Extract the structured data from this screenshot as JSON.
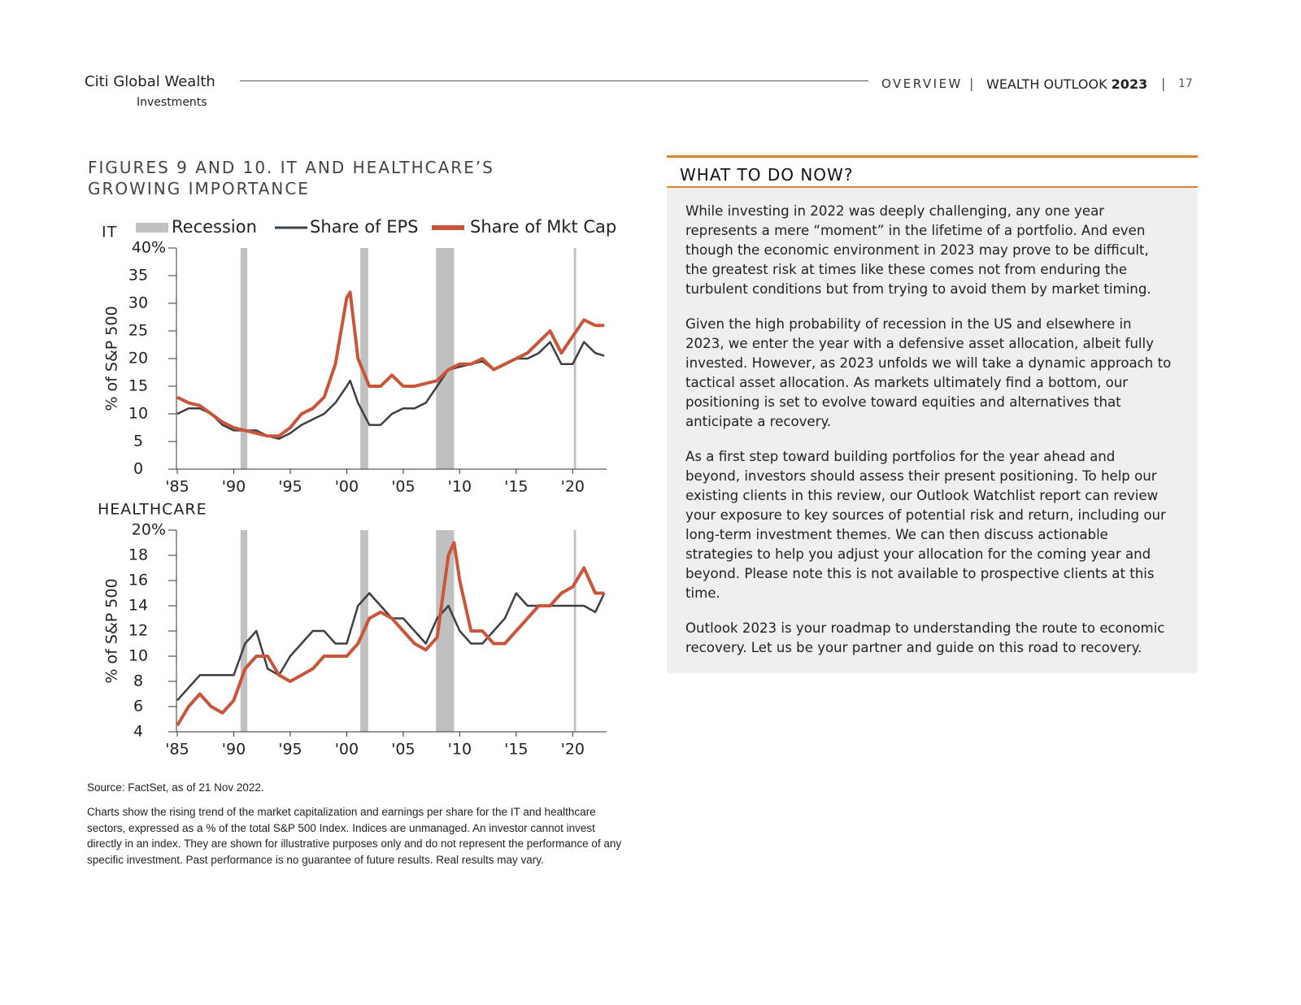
{
  "header": {
    "brand": "Citi Global Wealth",
    "brand_sub": "Investments",
    "section": "OVERVIEW",
    "publication": "WEALTH OUTLOOK",
    "year": "2023",
    "page": "17"
  },
  "figure": {
    "title_lines": [
      "FIGURES 9 AND 10. IT AND HEALTHCARE’S",
      "GROWING IMPORTANCE"
    ],
    "source": "Source: FactSet, as of 21 Nov 2022.",
    "note": "Charts show the rising trend of the market capitalization and earnings per share for the IT and healthcare sectors, expressed as a % of the total S&P 500 Index. Indices are unmanaged. An investor cannot invest directly in an index. They are shown for illustrative purposes only and do not represent the performance of any specific investment. Past performance is no guarantee of future results. Real results may vary."
  },
  "chart_data": [
    {
      "type": "line",
      "title": "IT",
      "ylabel": "% of S&P 500",
      "x": [
        1985,
        1986,
        1987,
        1988,
        1989,
        1990,
        1991,
        1992,
        1993,
        1994,
        1995,
        1996,
        1997,
        1998,
        1999,
        2000,
        2000.3,
        2001,
        2002,
        2003,
        2004,
        2005,
        2006,
        2007,
        2008,
        2009,
        2010,
        2011,
        2012,
        2013,
        2014,
        2015,
        2016,
        2017,
        2018,
        2019,
        2020,
        2021,
        2022,
        2022.8
      ],
      "recessions": {
        "name": "Recession",
        "color": "#c0c0c0",
        "periods": [
          [
            1990.6,
            1991.2
          ],
          [
            2001.2,
            2001.9
          ],
          [
            2007.9,
            2009.5
          ],
          [
            2020.1,
            2020.3
          ]
        ]
      },
      "series": [
        {
          "name": "Share of EPS",
          "color": "#3b4047",
          "values": [
            10,
            11,
            11,
            10,
            8,
            7,
            7,
            7,
            6,
            5.5,
            6.5,
            8,
            9,
            10,
            12,
            15,
            16,
            12,
            8,
            8,
            10,
            11,
            11,
            12,
            15,
            18,
            18.5,
            19,
            19.5,
            18,
            19,
            20,
            20,
            21,
            23,
            19,
            19,
            23,
            21,
            20.5
          ]
        },
        {
          "name": "Share of Mkt Cap",
          "color": "#c9553a",
          "values": [
            13,
            12,
            11.5,
            10,
            8.5,
            7.5,
            7,
            6.5,
            6,
            6,
            7.5,
            10,
            11,
            13,
            19,
            31,
            32,
            20,
            15,
            15,
            17,
            15,
            15,
            15.5,
            16,
            18,
            19,
            19,
            20,
            18,
            19,
            20,
            21,
            23,
            25,
            21,
            24,
            27,
            26,
            26
          ]
        }
      ],
      "xlim": [
        1985,
        2023
      ],
      "xticks": [
        {
          "value": 1985,
          "label": "'85"
        },
        {
          "value": 1990,
          "label": "'90"
        },
        {
          "value": 1995,
          "label": "'95"
        },
        {
          "value": 2000,
          "label": "'00"
        },
        {
          "value": 2005,
          "label": "'05"
        },
        {
          "value": 2010,
          "label": "'10"
        },
        {
          "value": 2015,
          "label": "'15"
        },
        {
          "value": 2020,
          "label": "'20"
        }
      ],
      "ylim": [
        0,
        40
      ],
      "yticks": [
        0,
        5,
        10,
        15,
        20,
        25,
        30,
        35,
        {
          "value": 40,
          "label": "40%"
        }
      ]
    },
    {
      "type": "line",
      "title": "HEALTHCARE",
      "ylabel": "% of S&P 500",
      "x": [
        1985,
        1986,
        1987,
        1988,
        1989,
        1990,
        1991,
        1992,
        1993,
        1994,
        1995,
        1996,
        1997,
        1998,
        1999,
        2000,
        2001,
        2002,
        2003,
        2004,
        2005,
        2006,
        2007,
        2008,
        2009,
        2009.5,
        2010,
        2011,
        2012,
        2013,
        2014,
        2015,
        2016,
        2017,
        2018,
        2019,
        2020,
        2021,
        2022,
        2022.8
      ],
      "recessions": {
        "color": "#c0c0c0",
        "periods": [
          [
            1990.6,
            1991.2
          ],
          [
            2001.2,
            2001.9
          ],
          [
            2007.9,
            2009.5
          ],
          [
            2020.1,
            2020.3
          ]
        ]
      },
      "series": [
        {
          "color": "#3b4047",
          "values": [
            6.5,
            7.5,
            8.5,
            8.5,
            8.5,
            8.5,
            11,
            12,
            9,
            8.5,
            10,
            11,
            12,
            12,
            11,
            11,
            14,
            15,
            14,
            13,
            13,
            12,
            11,
            13,
            14,
            13,
            12,
            11,
            11,
            12,
            13,
            15,
            14,
            14,
            14,
            14,
            14,
            14,
            13.5,
            15
          ]
        },
        {
          "color": "#c9553a",
          "values": [
            4.5,
            6,
            7,
            6,
            5.5,
            6.5,
            9,
            10,
            10,
            8.5,
            8,
            8.5,
            9,
            10,
            10,
            10,
            11,
            13,
            13.5,
            13,
            12,
            11,
            10.5,
            11.5,
            18,
            19,
            16,
            12,
            12,
            11,
            11,
            12,
            13,
            14,
            14,
            15,
            15.5,
            17,
            15,
            15
          ]
        }
      ],
      "xlim": [
        1985,
        2023
      ],
      "xticks": [
        {
          "value": 1985,
          "label": "'85"
        },
        {
          "value": 1990,
          "label": "'90"
        },
        {
          "value": 1995,
          "label": "'95"
        },
        {
          "value": 2000,
          "label": "'00"
        },
        {
          "value": 2005,
          "label": "'05"
        },
        {
          "value": 2010,
          "label": "'10"
        },
        {
          "value": 2015,
          "label": "'15"
        },
        {
          "value": 2020,
          "label": "'20"
        }
      ],
      "ylim": [
        4,
        20
      ],
      "yticks": [
        4,
        6,
        8,
        10,
        12,
        14,
        16,
        18,
        {
          "value": 20,
          "label": "20%"
        }
      ]
    }
  ],
  "sidebar": {
    "title": "WHAT TO DO NOW?",
    "paragraphs": [
      "While investing in 2022 was deeply challenging, any one year represents a mere “moment” in the lifetime of a portfolio. And even though the economic environment in 2023 may prove to be difficult, the greatest risk at times like these comes not from enduring the turbulent conditions but from trying to avoid them by market timing.",
      "Given the high probability of recession in the US and elsewhere in 2023, we enter the year with a defensive asset allocation, albeit fully invested. However, as 2023 unfolds we will take a dynamic approach to tactical asset allocation. As markets ultimately find a bottom, our positioning is set to evolve toward equities and alternatives that anticipate a recovery.",
      "As a first step toward building portfolios for the year ahead and beyond, investors should assess their present positioning. To help our existing clients in this review, our Outlook Watchlist report can review your exposure to key sources of potential risk and return, including our long-term investment themes. We can then discuss actionable strategies to help you adjust your allocation for the coming year and beyond. Please note this is not available to prospective clients at this time.",
      "Outlook 2023 is your roadmap to understanding the route to economic recovery. Let us be your partner and guide on this road to recovery."
    ]
  }
}
